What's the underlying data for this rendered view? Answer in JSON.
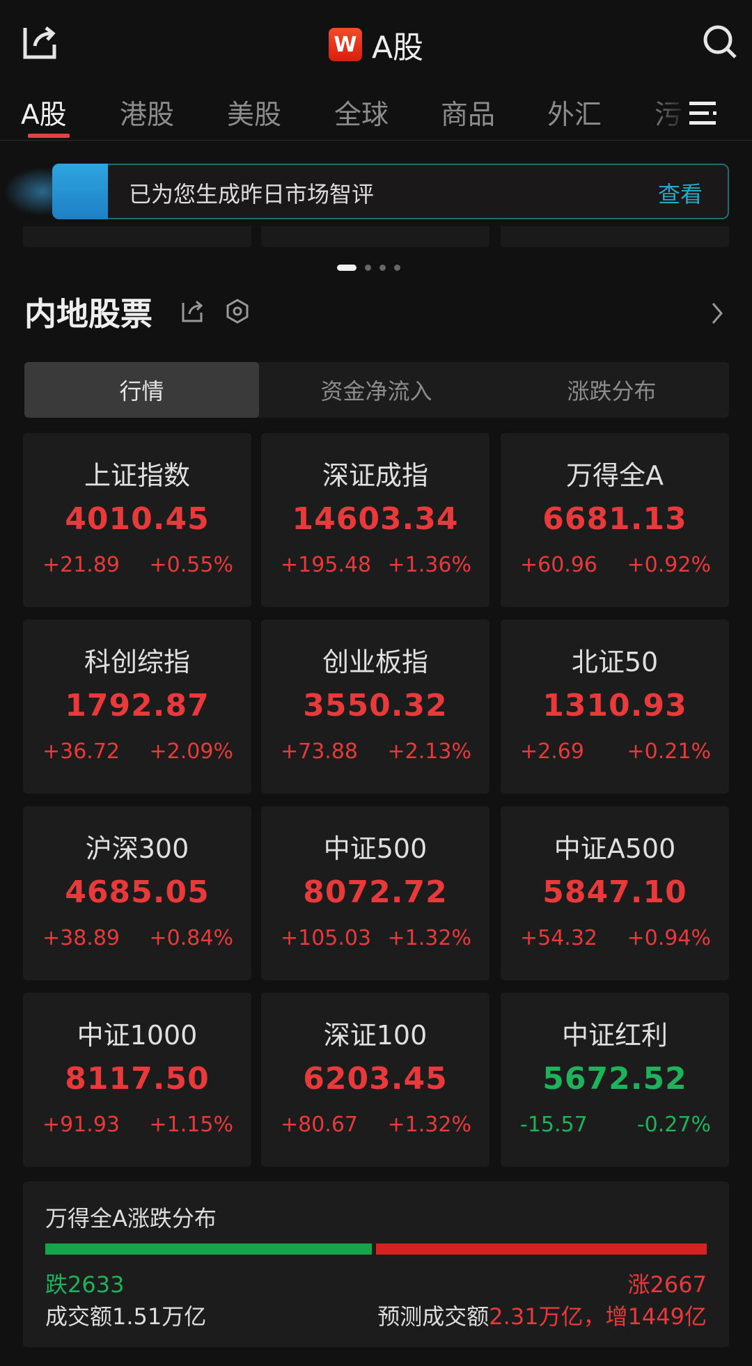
{
  "header": {
    "logo": "W",
    "title": "A股"
  },
  "tabs": [
    "A股",
    "港股",
    "美股",
    "全球",
    "商品",
    "外汇",
    "污"
  ],
  "banner": {
    "text": "已为您生成昨日市场智评",
    "link": "查看"
  },
  "carousel": {
    "pages": 4,
    "active": 1
  },
  "section": {
    "title": "内地股票"
  },
  "segments": [
    "行情",
    "资金净流入",
    "涨跌分布"
  ],
  "colors": {
    "up": "#e8393b",
    "down": "#1fb25a",
    "accent": "#e04444",
    "link": "#28a8c8"
  },
  "indices": [
    {
      "name": "上证指数",
      "price": "4010.45",
      "change": "+21.89",
      "pct": "+0.55%",
      "dir": "up"
    },
    {
      "name": "深证成指",
      "price": "14603.34",
      "change": "+195.48",
      "pct": "+1.36%",
      "dir": "up"
    },
    {
      "name": "万得全A",
      "price": "6681.13",
      "change": "+60.96",
      "pct": "+0.92%",
      "dir": "up"
    },
    {
      "name": "科创综指",
      "price": "1792.87",
      "change": "+36.72",
      "pct": "+2.09%",
      "dir": "up"
    },
    {
      "name": "创业板指",
      "price": "3550.32",
      "change": "+73.88",
      "pct": "+2.13%",
      "dir": "up"
    },
    {
      "name": "北证50",
      "price": "1310.93",
      "change": "+2.69",
      "pct": "+0.21%",
      "dir": "up"
    },
    {
      "name": "沪深300",
      "price": "4685.05",
      "change": "+38.89",
      "pct": "+0.84%",
      "dir": "up"
    },
    {
      "name": "中证500",
      "price": "8072.72",
      "change": "+105.03",
      "pct": "+1.32%",
      "dir": "up"
    },
    {
      "name": "中证A500",
      "price": "5847.10",
      "change": "+54.32",
      "pct": "+0.94%",
      "dir": "up"
    },
    {
      "name": "中证1000",
      "price": "8117.50",
      "change": "+91.93",
      "pct": "+1.15%",
      "dir": "up"
    },
    {
      "name": "深证100",
      "price": "6203.45",
      "change": "+80.67",
      "pct": "+1.32%",
      "dir": "up"
    },
    {
      "name": "中证红利",
      "price": "5672.52",
      "change": "-15.57",
      "pct": "-0.27%",
      "dir": "down"
    }
  ],
  "breadth": {
    "title": "万得全A涨跌分布",
    "down_label": "跌2633",
    "up_label": "涨2667",
    "down": 2633,
    "up": 2667,
    "volume": "成交额1.51万亿",
    "pred_label": "预测成交额",
    "pred_value": "2.31万亿，增1449亿"
  }
}
